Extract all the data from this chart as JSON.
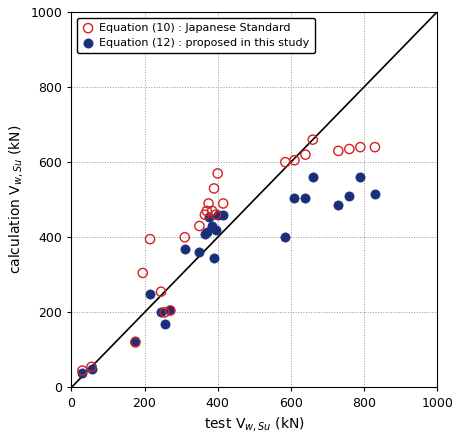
{
  "eq10_x": [
    30,
    55,
    175,
    195,
    215,
    245,
    255,
    270,
    310,
    350,
    365,
    370,
    375,
    385,
    390,
    395,
    400,
    415,
    585,
    610,
    640,
    660,
    730,
    760,
    790,
    830
  ],
  "eq10_y": [
    45,
    55,
    120,
    305,
    395,
    255,
    200,
    205,
    400,
    430,
    460,
    470,
    490,
    470,
    530,
    460,
    570,
    490,
    600,
    605,
    620,
    660,
    630,
    635,
    640,
    640
  ],
  "eq12_x": [
    30,
    55,
    175,
    215,
    245,
    255,
    270,
    310,
    350,
    365,
    370,
    375,
    385,
    390,
    395,
    400,
    415,
    585,
    610,
    640,
    660,
    730,
    760,
    790,
    830
  ],
  "eq12_y": [
    38,
    48,
    125,
    250,
    200,
    170,
    205,
    370,
    360,
    410,
    415,
    455,
    430,
    345,
    420,
    460,
    460,
    400,
    505,
    505,
    560,
    485,
    510,
    560,
    515
  ],
  "eq10_color": "#d42020",
  "eq12_color": "#1a2f7a",
  "eq10_label": "Equation (10) : Japanese Standard",
  "eq12_label": "Equation (12) : proposed in this study",
  "xlabel": "test V$_{w,Su}$ (kN)",
  "ylabel": "calculation V$_{w,Su}$ (kN)",
  "xlim": [
    0,
    1000
  ],
  "ylim": [
    0,
    1000
  ],
  "xticks": [
    0,
    200,
    400,
    600,
    800,
    1000
  ],
  "yticks": [
    0,
    200,
    400,
    600,
    800,
    1000
  ],
  "marker_size": 7,
  "line_color": "black",
  "grid_color": "#999999"
}
